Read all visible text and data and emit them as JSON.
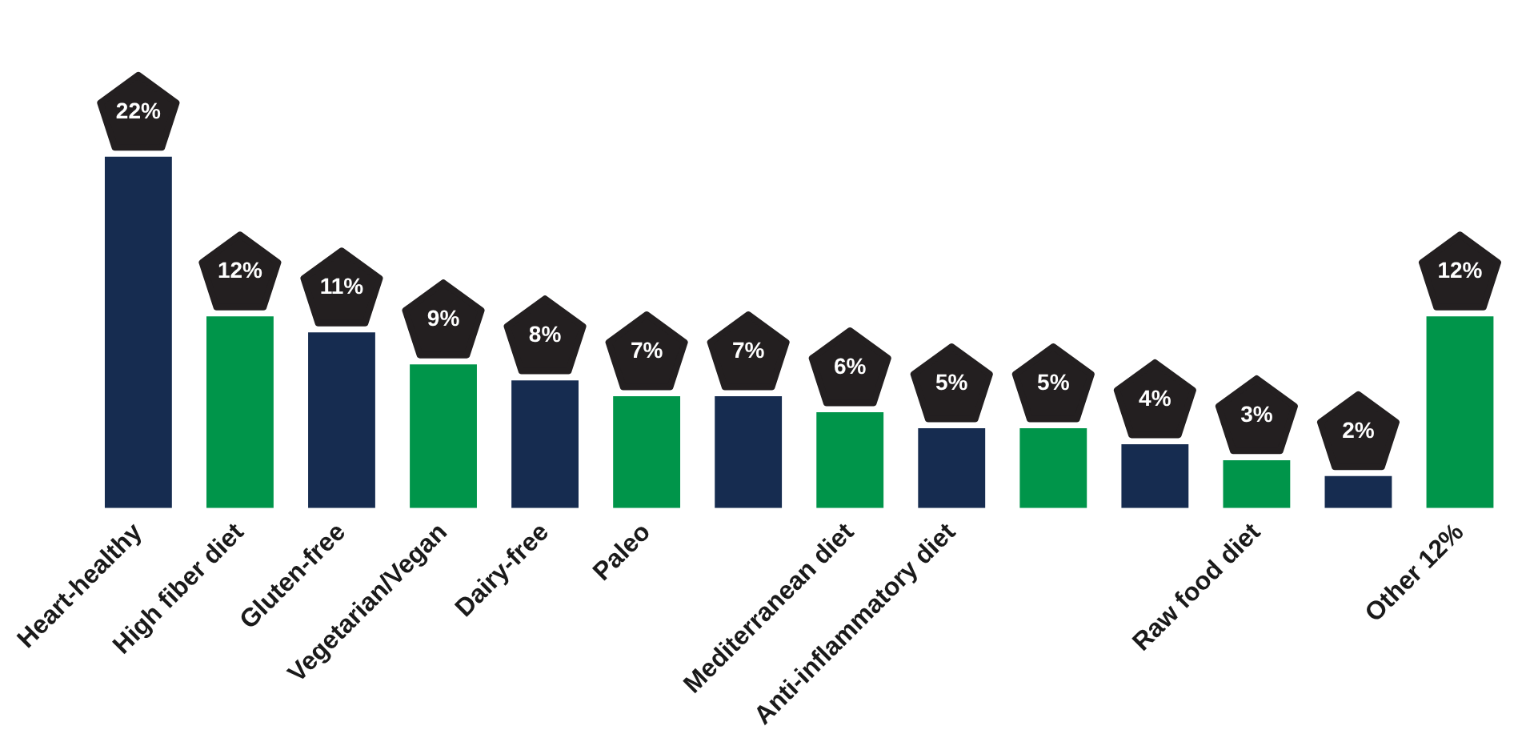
{
  "chart_data": {
    "type": "bar",
    "categories": [
      "Heart-healthy",
      "High fiber diet",
      "Gluten-free",
      "Vegetarian/Vegan",
      "Dairy-free",
      "Paleo",
      null,
      "Mediterranean diet",
      "Anti-inflammatory diet",
      null,
      null,
      "Raw food diet",
      null,
      "Other 12%"
    ],
    "values": [
      22,
      12,
      11,
      9,
      8,
      7,
      7,
      6,
      5,
      5,
      4,
      3,
      2,
      12
    ],
    "value_labels": [
      "22%",
      "12%",
      "11%",
      "9%",
      "8%",
      "7%",
      "7%",
      "6%",
      "5%",
      "5%",
      "4%",
      "3%",
      "2%",
      "12%"
    ],
    "colors": [
      "#162c50",
      "#00954a",
      "#162c50",
      "#00954a",
      "#162c50",
      "#00954a",
      "#162c50",
      "#00954a",
      "#162c50",
      "#00954a",
      "#162c50",
      "#00954a",
      "#162c50",
      "#00954a"
    ],
    "grid": false,
    "legend": false
  }
}
